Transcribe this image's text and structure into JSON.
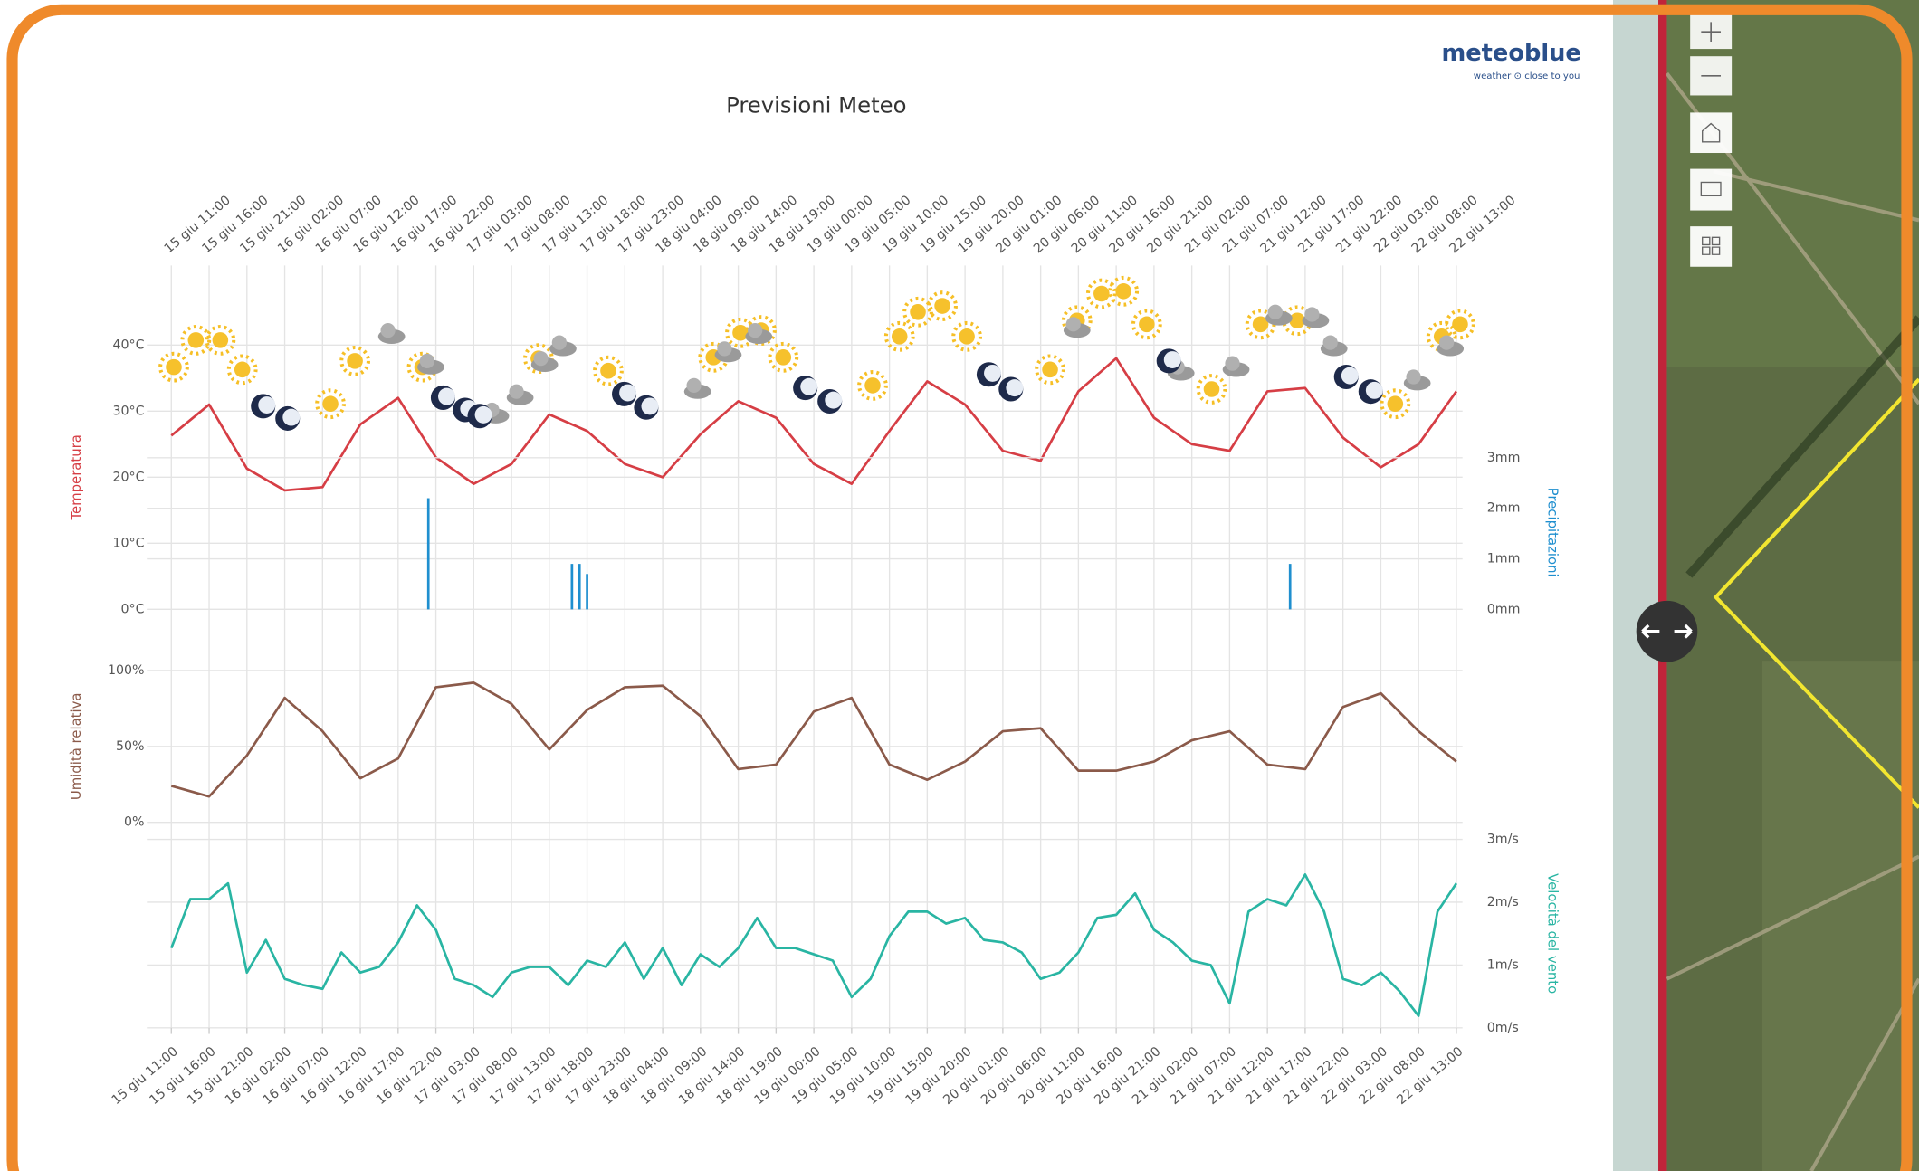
{
  "header": {
    "logo": "meteoblue",
    "tagline": "weather ⊙ close to you"
  },
  "chart_data": [
    {
      "type": "line",
      "title": "Previsioni Meteo",
      "y_label": "Temperatura",
      "color": "#d63e45",
      "x": [
        0,
        5,
        10,
        15,
        20,
        25,
        30,
        35,
        40,
        45,
        50,
        55,
        60,
        65,
        70,
        75,
        80,
        85,
        90,
        95,
        100,
        105,
        110,
        115,
        120,
        125,
        130,
        135,
        140,
        145,
        150,
        155,
        160,
        165,
        170
      ],
      "values": [
        26.3,
        31,
        21.3,
        18,
        18.5,
        28,
        32,
        23,
        19,
        22,
        29.5,
        27,
        22,
        20,
        26.5,
        31.5,
        29,
        22,
        19,
        27,
        34.5,
        31,
        24,
        22.5,
        33,
        38,
        29,
        25,
        24,
        33,
        33.5,
        26,
        21.5,
        25,
        33
      ],
      "xlim": [
        0,
        170
      ],
      "ylim": [
        0,
        52
      ],
      "xticks": [
        {
          "value": 0,
          "label": "15 giu 11:00"
        },
        {
          "value": 5,
          "label": "15 giu 16:00"
        },
        {
          "value": 10,
          "label": "15 giu 21:00"
        },
        {
          "value": 15,
          "label": "16 giu 02:00"
        },
        {
          "value": 20,
          "label": "16 giu 07:00"
        },
        {
          "value": 25,
          "label": "16 giu 12:00"
        },
        {
          "value": 30,
          "label": "16 giu 17:00"
        },
        {
          "value": 35,
          "label": "16 giu 22:00"
        },
        {
          "value": 40,
          "label": "17 giu 03:00"
        },
        {
          "value": 45,
          "label": "17 giu 08:00"
        },
        {
          "value": 50,
          "label": "17 giu 13:00"
        },
        {
          "value": 55,
          "label": "17 giu 18:00"
        },
        {
          "value": 60,
          "label": "17 giu 23:00"
        },
        {
          "value": 65,
          "label": "18 giu 04:00"
        },
        {
          "value": 70,
          "label": "18 giu 09:00"
        },
        {
          "value": 75,
          "label": "18 giu 14:00"
        },
        {
          "value": 80,
          "label": "18 giu 19:00"
        },
        {
          "value": 85,
          "label": "19 giu 00:00"
        },
        {
          "value": 90,
          "label": "19 giu 05:00"
        },
        {
          "value": 95,
          "label": "19 giu 10:00"
        },
        {
          "value": 100,
          "label": "19 giu 15:00"
        },
        {
          "value": 105,
          "label": "19 giu 20:00"
        },
        {
          "value": 110,
          "label": "20 giu 01:00"
        },
        {
          "value": 115,
          "label": "20 giu 06:00"
        },
        {
          "value": 120,
          "label": "20 giu 11:00"
        },
        {
          "value": 125,
          "label": "20 giu 16:00"
        },
        {
          "value": 130,
          "label": "20 giu 21:00"
        },
        {
          "value": 135,
          "label": "21 giu 02:00"
        },
        {
          "value": 140,
          "label": "21 giu 07:00"
        },
        {
          "value": 145,
          "label": "21 giu 12:00"
        },
        {
          "value": 150,
          "label": "21 giu 17:00"
        },
        {
          "value": 155,
          "label": "21 giu 22:00"
        },
        {
          "value": 160,
          "label": "22 giu 03:00"
        },
        {
          "value": 165,
          "label": "22 giu 08:00"
        },
        {
          "value": 170,
          "label": "22 giu 13:00"
        }
      ],
      "yticks": [
        {
          "value": 0,
          "label": "0°C"
        },
        {
          "value": 10,
          "label": "10°C"
        },
        {
          "value": 20,
          "label": "20°C"
        },
        {
          "value": 30,
          "label": "30°C"
        },
        {
          "value": 40,
          "label": "40°C"
        }
      ]
    },
    {
      "type": "bar",
      "y_label": "Precipitazioni",
      "color": "#1f8fcf",
      "x": [
        34,
        53,
        54,
        55,
        148
      ],
      "values": [
        2.2,
        0.9,
        0.9,
        0.7,
        0.9
      ],
      "xlim": [
        0,
        170
      ],
      "ylim": [
        0,
        6.8
      ],
      "yticks": [
        {
          "value": 0,
          "label": "0mm"
        },
        {
          "value": 1,
          "label": "1mm"
        },
        {
          "value": 2,
          "label": "2mm"
        },
        {
          "value": 3,
          "label": "3mm"
        }
      ]
    },
    {
      "type": "line",
      "y_label": "Umidità relativa",
      "color": "#8b5a4a",
      "x": [
        0,
        5,
        10,
        15,
        20,
        25,
        30,
        35,
        40,
        45,
        50,
        55,
        60,
        65,
        70,
        75,
        80,
        85,
        90,
        95,
        100,
        105,
        110,
        115,
        120,
        125,
        130,
        135,
        140,
        145,
        150,
        155,
        160,
        165,
        170
      ],
      "values": [
        24,
        17,
        44,
        82,
        60,
        29,
        42,
        89,
        92,
        78,
        48,
        74,
        89,
        90,
        70,
        35,
        38,
        73,
        82,
        38,
        28,
        40,
        60,
        62,
        34,
        34,
        40,
        54,
        60,
        38,
        35,
        76,
        85,
        60,
        40
      ],
      "xlim": [
        0,
        170
      ],
      "ylim": [
        0,
        100
      ],
      "yticks": [
        {
          "value": 0,
          "label": "0%"
        },
        {
          "value": 50,
          "label": "50%"
        },
        {
          "value": 100,
          "label": "100%"
        }
      ]
    },
    {
      "type": "line",
      "y_label": "Velocità del vento",
      "color": "#29b5a3",
      "x": [
        0,
        2.5,
        5,
        7.5,
        10,
        12.5,
        15,
        17.5,
        20,
        22.5,
        25,
        27.5,
        30,
        32.5,
        35,
        37.5,
        40,
        42.5,
        45,
        47.5,
        50,
        52.5,
        55,
        57.5,
        60,
        62.5,
        65,
        67.5,
        70,
        72.5,
        75,
        77.5,
        80,
        82.5,
        85,
        87.5,
        90,
        92.5,
        95,
        97.5,
        100,
        102.5,
        105,
        107.5,
        110,
        112.5,
        115,
        117.5,
        120,
        122.5,
        125,
        127.5,
        130,
        132.5,
        135,
        137.5,
        140,
        142.5,
        145,
        147.5,
        150,
        152.5,
        155,
        157.5,
        160,
        162.5,
        165,
        167.5,
        170
      ],
      "values": [
        1.27,
        2.05,
        2.05,
        2.3,
        0.88,
        1.4,
        0.78,
        0.68,
        0.62,
        1.2,
        0.88,
        0.97,
        1.36,
        1.95,
        1.56,
        0.78,
        0.68,
        0.49,
        0.88,
        0.97,
        0.97,
        0.68,
        1.07,
        0.97,
        1.36,
        0.78,
        1.27,
        0.68,
        1.17,
        0.97,
        1.27,
        1.75,
        1.27,
        1.27,
        1.17,
        1.07,
        0.49,
        0.78,
        1.46,
        1.85,
        1.85,
        1.66,
        1.75,
        1.4,
        1.36,
        1.2,
        0.78,
        0.88,
        1.2,
        1.75,
        1.8,
        2.14,
        1.56,
        1.36,
        1.07,
        1.0,
        0.39,
        1.85,
        2.05,
        1.95,
        2.44,
        1.85,
        0.78,
        0.68,
        0.88,
        0.58,
        0.19,
        1.85,
        2.3
      ],
      "xlim": [
        0,
        170
      ],
      "ylim": [
        0,
        3
      ],
      "xticks": [
        {
          "value": 0,
          "label": "15 giu 11:00"
        },
        {
          "value": 5,
          "label": "15 giu 16:00"
        },
        {
          "value": 10,
          "label": "15 giu 21:00"
        },
        {
          "value": 15,
          "label": "16 giu 02:00"
        },
        {
          "value": 20,
          "label": "16 giu 07:00"
        },
        {
          "value": 25,
          "label": "16 giu 12:00"
        },
        {
          "value": 30,
          "label": "16 giu 17:00"
        },
        {
          "value": 35,
          "label": "16 giu 22:00"
        },
        {
          "value": 40,
          "label": "17 giu 03:00"
        },
        {
          "value": 45,
          "label": "17 giu 08:00"
        },
        {
          "value": 50,
          "label": "17 giu 13:00"
        },
        {
          "value": 55,
          "label": "17 giu 18:00"
        },
        {
          "value": 60,
          "label": "17 giu 23:00"
        },
        {
          "value": 65,
          "label": "18 giu 04:00"
        },
        {
          "value": 70,
          "label": "18 giu 09:00"
        },
        {
          "value": 75,
          "label": "18 giu 14:00"
        },
        {
          "value": 80,
          "label": "18 giu 19:00"
        },
        {
          "value": 85,
          "label": "19 giu 00:00"
        },
        {
          "value": 90,
          "label": "19 giu 05:00"
        },
        {
          "value": 95,
          "label": "19 giu 10:00"
        },
        {
          "value": 100,
          "label": "19 giu 15:00"
        },
        {
          "value": 105,
          "label": "19 giu 20:00"
        },
        {
          "value": 110,
          "label": "20 giu 01:00"
        },
        {
          "value": 115,
          "label": "20 giu 06:00"
        },
        {
          "value": 120,
          "label": "20 giu 11:00"
        },
        {
          "value": 125,
          "label": "20 giu 16:00"
        },
        {
          "value": 130,
          "label": "20 giu 21:00"
        },
        {
          "value": 135,
          "label": "21 giu 02:00"
        },
        {
          "value": 140,
          "label": "21 giu 07:00"
        },
        {
          "value": 145,
          "label": "21 giu 12:00"
        },
        {
          "value": 150,
          "label": "21 giu 17:00"
        },
        {
          "value": 155,
          "label": "21 giu 22:00"
        },
        {
          "value": 160,
          "label": "22 giu 03:00"
        },
        {
          "value": 165,
          "label": "22 giu 08:00"
        },
        {
          "value": 170,
          "label": "22 giu 13:00"
        }
      ],
      "yticks": [
        {
          "value": 0,
          "label": "0m/s"
        },
        {
          "value": 1,
          "label": "1m/s"
        },
        {
          "value": 2,
          "label": "2m/s"
        },
        {
          "value": 3,
          "label": "3m/s"
        }
      ]
    }
  ]
}
